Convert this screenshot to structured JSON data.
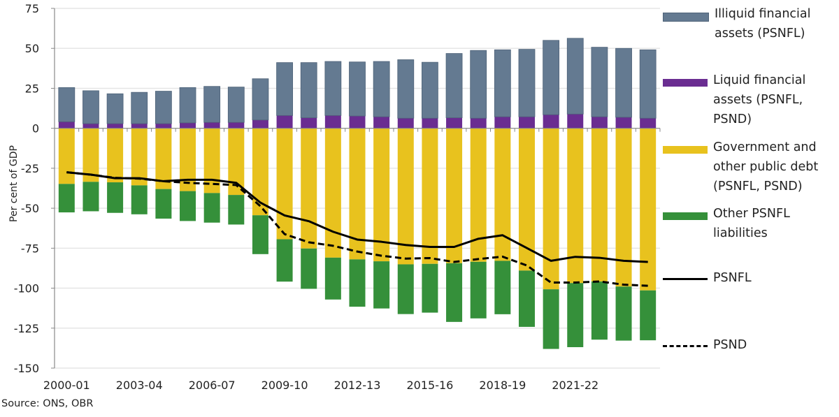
{
  "chart_data": {
    "type": "bar",
    "stacked": true,
    "ylabel": "Per cent of GDP",
    "ylim": [
      -150,
      75
    ],
    "yticks": [
      75,
      50,
      25,
      0,
      -25,
      -50,
      -75,
      -100,
      -125,
      -150
    ],
    "grid": true,
    "legend_position": "right",
    "categories": [
      "2000-01",
      "2001-02",
      "2002-03",
      "2003-04",
      "2004-05",
      "2005-06",
      "2006-07",
      "2007-08",
      "2008-09",
      "2009-10",
      "2010-11",
      "2011-12",
      "2012-13",
      "2013-14",
      "2014-15",
      "2015-16",
      "2016-17",
      "2017-18",
      "2018-19",
      "2019-20",
      "2020-21",
      "2021-22",
      "2022-23",
      "2023-24",
      "2024-25"
    ],
    "x_tick_labels": [
      "2000-01",
      "2003-04",
      "2006-07",
      "2009-10",
      "2012-13",
      "2015-16",
      "2018-19",
      "2021-22"
    ],
    "series": [
      {
        "name": "Liquid financial assets (PSNFL, PSND)",
        "kind": "bar",
        "color": "#6a2d91",
        "values": [
          4.1,
          2.9,
          2.9,
          2.9,
          2.9,
          3.4,
          3.7,
          3.7,
          5.2,
          8.0,
          6.6,
          8.0,
          7.7,
          7.2,
          6.3,
          6.3,
          6.6,
          6.3,
          7.2,
          7.2,
          8.5,
          8.9,
          7.2,
          6.9,
          6.3
        ]
      },
      {
        "name": "Illiquid financial assets (PSNFL)",
        "kind": "bar",
        "color": "#647a91",
        "values": [
          21.4,
          20.6,
          18.7,
          19.6,
          20.3,
          22.1,
          22.5,
          22.1,
          25.8,
          33.1,
          34.5,
          33.8,
          33.8,
          34.6,
          36.6,
          35.0,
          40.2,
          42.4,
          41.9,
          42.2,
          46.5,
          47.4,
          43.5,
          43.1,
          42.8
        ]
      },
      {
        "name": "Government and other public debt (PSNFL, PSND)",
        "kind": "bar",
        "color": "#e8c21e",
        "values": [
          -34.8,
          -33.5,
          -33.8,
          -35.7,
          -38.0,
          -39.3,
          -40.5,
          -41.7,
          -54.4,
          -69.4,
          -75.2,
          -80.9,
          -82.0,
          -83.2,
          -85.1,
          -84.8,
          -84.4,
          -83.5,
          -82.9,
          -89.0,
          -100.7,
          -96.8,
          -95.8,
          -99.0,
          -101.4
        ]
      },
      {
        "name": "Other PSNFL liabilities",
        "kind": "bar",
        "color": "#35903a",
        "values": [
          -17.8,
          -18.4,
          -19.1,
          -18.1,
          -18.5,
          -18.7,
          -18.5,
          -18.5,
          -24.3,
          -26.5,
          -25.2,
          -26.2,
          -29.6,
          -29.5,
          -31.1,
          -30.5,
          -36.7,
          -35.4,
          -33.4,
          -35.2,
          -37.3,
          -40.1,
          -36.4,
          -33.8,
          -31.2
        ]
      },
      {
        "name": "PSNFL",
        "kind": "line",
        "color": "#000000",
        "dash": false,
        "values": [
          -27.5,
          -29.0,
          -31.2,
          -31.2,
          -33.1,
          -32.2,
          -32.2,
          -34.1,
          -46.5,
          -54.5,
          -58.1,
          -64.7,
          -69.6,
          -71.0,
          -73.0,
          -74.2,
          -74.2,
          -69.1,
          -66.9,
          -74.9,
          -82.9,
          -80.4,
          -81.0,
          -82.9,
          -83.6
        ]
      },
      {
        "name": "PSND",
        "kind": "line",
        "color": "#000000",
        "dash": true,
        "values": [
          -27.5,
          -29.0,
          -31.0,
          -31.5,
          -33.1,
          -34.1,
          -34.8,
          -35.5,
          -48.7,
          -66.2,
          -71.3,
          -73.5,
          -77.1,
          -79.7,
          -81.5,
          -81.2,
          -83.6,
          -81.8,
          -80.3,
          -85.8,
          -96.5,
          -96.5,
          -95.8,
          -97.8,
          -98.5
        ]
      }
    ]
  },
  "legend": {
    "illiquid": "Illiquid financial assets (PSNFL)",
    "liquid": "Liquid financial assets (PSNFL, PSND)",
    "debt": "Government and other public debt (PSNFL, PSND)",
    "other": "Other PSNFL liabilities",
    "psnfl": "PSNFL",
    "psnd": "PSND"
  },
  "source": "Source: ONS, OBR"
}
